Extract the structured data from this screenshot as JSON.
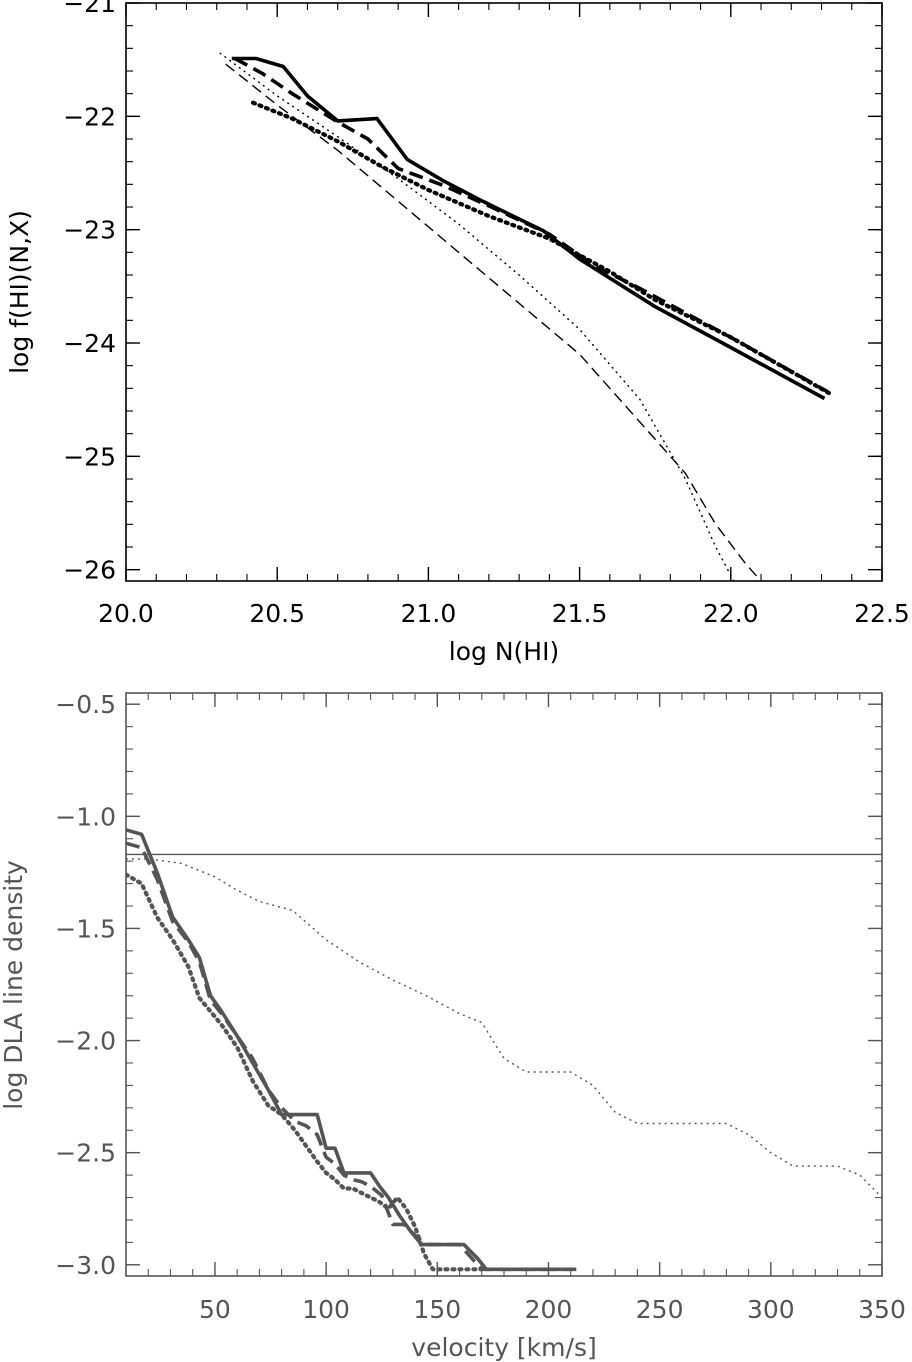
{
  "chart_data": [
    {
      "type": "line",
      "xlabel": "log N(HI)",
      "ylabel": "log f(HI)(N,X)",
      "xlim": [
        20.0,
        22.5
      ],
      "ylim": [
        -26.1,
        -21.0
      ],
      "xticks": [
        "20.0",
        "20.5",
        "21.0",
        "21.5",
        "22.0",
        "22.5"
      ],
      "xtick_values": [
        20.0,
        20.5,
        21.0,
        21.5,
        22.0,
        22.5
      ],
      "yticks": [
        "−21",
        "−22",
        "−23",
        "−24",
        "−25",
        "−26"
      ],
      "ytick_values": [
        -21,
        -22,
        -23,
        -24,
        -25,
        -26
      ],
      "grid": false,
      "color": "#000000",
      "series": [
        {
          "style": "solid-thick",
          "x": [
            20.35,
            20.43,
            20.52,
            20.6,
            20.7,
            20.83,
            20.93,
            21.05,
            21.18,
            21.38,
            21.5,
            21.75,
            22.0,
            22.31
          ],
          "y": [
            -21.49,
            -21.49,
            -21.56,
            -21.82,
            -22.04,
            -22.02,
            -22.38,
            -22.57,
            -22.75,
            -23.01,
            -23.26,
            -23.68,
            -24.04,
            -24.49
          ]
        },
        {
          "style": "dashed-thick",
          "x": [
            20.36,
            20.45,
            20.55,
            20.7,
            20.8,
            20.9,
            21.05,
            21.2,
            21.4,
            21.55,
            21.7,
            22.0,
            22.32
          ],
          "y": [
            -21.49,
            -21.62,
            -21.8,
            -22.05,
            -22.2,
            -22.46,
            -22.61,
            -22.79,
            -23.04,
            -23.32,
            -23.52,
            -23.95,
            -24.43
          ]
        },
        {
          "style": "dotted-thick",
          "x": [
            20.42,
            20.55,
            20.7,
            20.85,
            21.0,
            21.2,
            21.4,
            21.6,
            21.75,
            22.0,
            22.33
          ],
          "y": [
            -21.88,
            -22.02,
            -22.22,
            -22.45,
            -22.65,
            -22.88,
            -23.08,
            -23.37,
            -23.62,
            -23.95,
            -24.45
          ]
        },
        {
          "style": "dashed-thin",
          "x": [
            20.33,
            20.5,
            20.7,
            20.9,
            21.1,
            21.3,
            21.5,
            21.7,
            21.85,
            21.95,
            22.05,
            22.1
          ],
          "y": [
            -21.54,
            -21.9,
            -22.3,
            -22.75,
            -23.2,
            -23.65,
            -24.1,
            -24.7,
            -25.15,
            -25.6,
            -25.95,
            -26.1
          ]
        },
        {
          "style": "dotted-thin",
          "x": [
            20.31,
            20.5,
            20.7,
            20.9,
            21.1,
            21.3,
            21.5,
            21.7,
            21.85,
            21.95,
            22.01
          ],
          "y": [
            -21.44,
            -21.82,
            -22.18,
            -22.55,
            -22.95,
            -23.4,
            -23.88,
            -24.5,
            -25.2,
            -25.8,
            -26.1
          ]
        }
      ]
    },
    {
      "type": "line",
      "xlabel": "velocity [km/s]",
      "ylabel": "log DLA line density",
      "xlim": [
        10,
        350
      ],
      "ylim": [
        -3.05,
        -0.45
      ],
      "xticks": [
        "50",
        "100",
        "150",
        "200",
        "250",
        "300",
        "350"
      ],
      "xtick_values": [
        50,
        100,
        150,
        200,
        250,
        300,
        350
      ],
      "yticks": [
        "−0.5",
        "−1.0",
        "−1.5",
        "−2.0",
        "−2.5",
        "−3.0"
      ],
      "ytick_values": [
        -0.5,
        -1.0,
        -1.5,
        -2.0,
        -2.5,
        -3.0
      ],
      "grid": false,
      "color": "#555555",
      "hline": -1.17,
      "series": [
        {
          "style": "solid-thick",
          "x": [
            10,
            17,
            24,
            31,
            38,
            43,
            48,
            53,
            60,
            67,
            74,
            80,
            86,
            91,
            96,
            100,
            104,
            108,
            112,
            116,
            120,
            124,
            128,
            133,
            138,
            143,
            148,
            155,
            162,
            168,
            172,
            180,
            190,
            200,
            210
          ],
          "y": [
            -1.06,
            -1.08,
            -1.25,
            -1.45,
            -1.55,
            -1.63,
            -1.8,
            -1.87,
            -1.98,
            -2.1,
            -2.22,
            -2.33,
            -2.33,
            -2.33,
            -2.33,
            -2.48,
            -2.48,
            -2.59,
            -2.59,
            -2.59,
            -2.59,
            -2.65,
            -2.7,
            -2.78,
            -2.85,
            -2.91,
            -2.91,
            -2.91,
            -2.91,
            -2.97,
            -3.02,
            -3.02,
            -3.02,
            -3.02,
            -3.02
          ]
        },
        {
          "style": "dashed-thick",
          "x": [
            10,
            17,
            24,
            31,
            38,
            43,
            48,
            53,
            60,
            67,
            74,
            80,
            86,
            91,
            96,
            100,
            104,
            108,
            112,
            116,
            120,
            125,
            130,
            135,
            140,
            145,
            150,
            160,
            170,
            180,
            190,
            200,
            213
          ],
          "y": [
            -1.12,
            -1.14,
            -1.28,
            -1.47,
            -1.56,
            -1.65,
            -1.82,
            -1.88,
            -1.98,
            -2.08,
            -2.22,
            -2.3,
            -2.36,
            -2.38,
            -2.42,
            -2.52,
            -2.55,
            -2.6,
            -2.62,
            -2.63,
            -2.65,
            -2.69,
            -2.82,
            -2.82,
            -2.87,
            -2.91,
            -2.91,
            -2.91,
            -3.02,
            -3.02,
            -3.02,
            -3.02,
            -3.02
          ]
        },
        {
          "style": "dotted-thick",
          "x": [
            10,
            17,
            24,
            31,
            38,
            43,
            48,
            53,
            60,
            67,
            74,
            80,
            86,
            91,
            96,
            100,
            104,
            108,
            112,
            116,
            120,
            124,
            128,
            132,
            136,
            140,
            144,
            148,
            152,
            160,
            170
          ],
          "y": [
            -1.26,
            -1.3,
            -1.45,
            -1.55,
            -1.67,
            -1.81,
            -1.87,
            -1.93,
            -2.03,
            -2.18,
            -2.29,
            -2.33,
            -2.4,
            -2.47,
            -2.54,
            -2.59,
            -2.62,
            -2.66,
            -2.66,
            -2.68,
            -2.7,
            -2.72,
            -2.75,
            -2.7,
            -2.75,
            -2.83,
            -2.95,
            -3.02,
            -3.02,
            -3.02,
            -3.02
          ]
        },
        {
          "style": "dotted-thin",
          "x": [
            10,
            20,
            35,
            50,
            60,
            70,
            85,
            100,
            115,
            130,
            145,
            160,
            170,
            180,
            190,
            200,
            210,
            220,
            230,
            240,
            250,
            260,
            270,
            280,
            290,
            300,
            310,
            320,
            330,
            340,
            350
          ],
          "y": [
            -1.19,
            -1.19,
            -1.21,
            -1.27,
            -1.33,
            -1.38,
            -1.42,
            -1.55,
            -1.65,
            -1.73,
            -1.8,
            -1.88,
            -1.92,
            -2.08,
            -2.14,
            -2.14,
            -2.14,
            -2.2,
            -2.32,
            -2.37,
            -2.37,
            -2.37,
            -2.37,
            -2.37,
            -2.42,
            -2.5,
            -2.56,
            -2.56,
            -2.56,
            -2.6,
            -2.7
          ]
        }
      ]
    }
  ]
}
